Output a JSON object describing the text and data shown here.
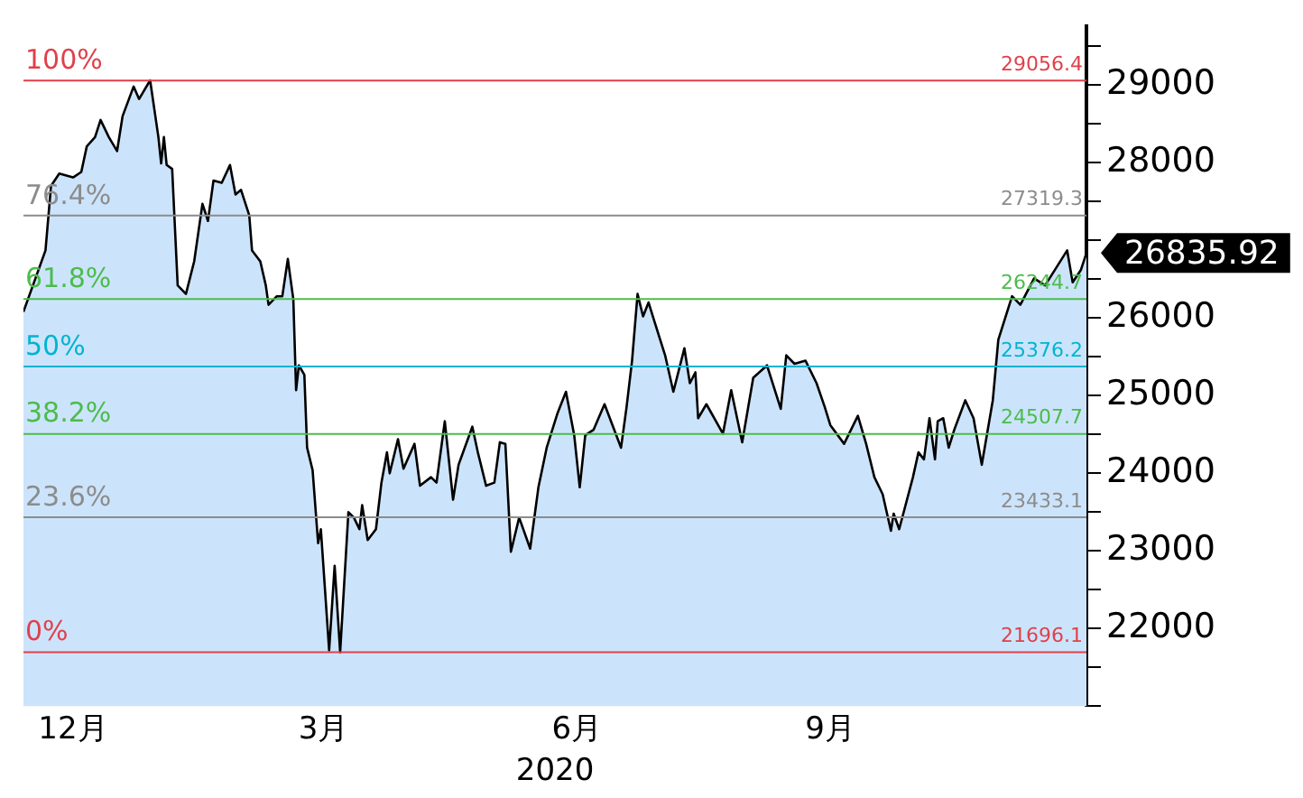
{
  "chart_data": {
    "type": "area",
    "xlabel": "2020",
    "legend": false,
    "grid": false,
    "marker": "none",
    "x": [
      "2019-11-13",
      "2019-11-21",
      "2019-11-23",
      "2019-11-26",
      "2019-12-01",
      "2019-12-04",
      "2019-12-06",
      "2019-12-09",
      "2019-12-11",
      "2019-12-14",
      "2019-12-17",
      "2019-12-19",
      "2019-12-23",
      "2019-12-25",
      "2019-12-29",
      "2020-01-01",
      "2020-01-02",
      "2020-01-03",
      "2020-01-04",
      "2020-01-06",
      "2020-01-08",
      "2020-01-11",
      "2020-01-14",
      "2020-01-17",
      "2020-01-19",
      "2020-01-21",
      "2020-01-24",
      "2020-01-27",
      "2020-01-29",
      "2020-01-31",
      "2020-02-03",
      "2020-02-04",
      "2020-02-07",
      "2020-02-09",
      "2020-02-10",
      "2020-02-13",
      "2020-02-15",
      "2020-02-17",
      "2020-02-19",
      "2020-02-20",
      "2020-02-21",
      "2020-02-23",
      "2020-02-24",
      "2020-02-26",
      "2020-02-28",
      "2020-02-29",
      "2020-03-03",
      "2020-03-05",
      "2020-03-07",
      "2020-03-10",
      "2020-03-12",
      "2020-03-14",
      "2020-03-15",
      "2020-03-17",
      "2020-03-20",
      "2020-03-22",
      "2020-03-24",
      "2020-03-25",
      "2020-03-28",
      "2020-03-30",
      "2020-04-03",
      "2020-04-05",
      "2020-04-09",
      "2020-04-11",
      "2020-04-14",
      "2020-04-17",
      "2020-04-19",
      "2020-04-24",
      "2020-04-26",
      "2020-04-29",
      "2020-05-02",
      "2020-05-04",
      "2020-05-06",
      "2020-05-08",
      "2020-05-11",
      "2020-05-15",
      "2020-05-18",
      "2020-05-21",
      "2020-05-25",
      "2020-05-28",
      "2020-05-31",
      "2020-06-02",
      "2020-06-04",
      "2020-06-07",
      "2020-06-11",
      "2020-06-17",
      "2020-06-19",
      "2020-06-21",
      "2020-06-23",
      "2020-06-25",
      "2020-06-27",
      "2020-06-29",
      "2020-07-03",
      "2020-07-06",
      "2020-07-10",
      "2020-07-12",
      "2020-07-14",
      "2020-07-15",
      "2020-07-18",
      "2020-07-24",
      "2020-07-27",
      "2020-07-31",
      "2020-08-04",
      "2020-08-09",
      "2020-08-14",
      "2020-08-16",
      "2020-08-19",
      "2020-08-23",
      "2020-08-27",
      "2020-08-30",
      "2020-09-01",
      "2020-09-06",
      "2020-09-11",
      "2020-09-14",
      "2020-09-17",
      "2020-09-20",
      "2020-09-23",
      "2020-09-24",
      "2020-09-26",
      "2020-10-01",
      "2020-10-03",
      "2020-10-05",
      "2020-10-07",
      "2020-10-09",
      "2020-10-10",
      "2020-10-12",
      "2020-10-14",
      "2020-10-16",
      "2020-10-20",
      "2020-10-23",
      "2020-10-26",
      "2020-10-30",
      "2020-11-01",
      "2020-11-06",
      "2020-11-09",
      "2020-11-14",
      "2020-11-18",
      "2020-11-26",
      "2020-11-28",
      "2020-12-01",
      "2020-12-03"
    ],
    "series": [
      {
        "color": "#cce4fb",
        "values": [
          26080,
          26870,
          27700,
          27860,
          27810,
          27880,
          28210,
          28330,
          28550,
          28330,
          28150,
          28600,
          28980,
          28820,
          29060,
          28330,
          27990,
          28330,
          27970,
          27920,
          26420,
          26310,
          26730,
          27470,
          27250,
          27770,
          27740,
          27970,
          27590,
          27650,
          27320,
          26870,
          26730,
          26420,
          26170,
          26280,
          26280,
          26760,
          26240,
          25070,
          25390,
          25270,
          24330,
          24040,
          23100,
          23280,
          21720,
          22810,
          21696,
          23500,
          23430,
          23280,
          23590,
          23140,
          23280,
          23880,
          24270,
          24000,
          24440,
          24060,
          24380,
          23840,
          23950,
          23880,
          24670,
          23660,
          24110,
          24600,
          24270,
          23840,
          23880,
          24400,
          24380,
          22990,
          23430,
          23030,
          23820,
          24330,
          24780,
          25050,
          24490,
          23820,
          24490,
          24560,
          24890,
          24330,
          24850,
          25450,
          26310,
          26020,
          26200,
          25970,
          25520,
          25050,
          25610,
          25160,
          25300,
          24710,
          24890,
          24510,
          25070,
          24400,
          25230,
          25390,
          24830,
          25520,
          25410,
          25450,
          25160,
          24850,
          24620,
          24380,
          24740,
          24380,
          23950,
          23730,
          23260,
          23480,
          23280,
          23950,
          24270,
          24180,
          24710,
          24180,
          24670,
          24710,
          24330,
          24560,
          24940,
          24710,
          24110,
          24940,
          25720,
          26280,
          26170,
          26510,
          26420,
          26870,
          26460,
          26620,
          26835.92
        ]
      }
    ],
    "xlim": [
      "2019-11-13",
      "2020-12-03"
    ],
    "xticks": [
      {
        "value": "2019-12-01",
        "label": "12月"
      },
      {
        "value": "2020-03-01",
        "label": "3月"
      },
      {
        "value": "2020-06-01",
        "label": "6月"
      },
      {
        "value": "2020-09-01",
        "label": "9月"
      }
    ],
    "ylim": [
      21000,
      29760
    ],
    "yticks": [
      {
        "value": 21000,
        "label": null
      },
      {
        "value": 21500,
        "label": null
      },
      22000,
      {
        "value": 22500,
        "label": null
      },
      23000,
      {
        "value": 23500,
        "label": null
      },
      24000,
      {
        "value": 24500,
        "label": null
      },
      25000,
      {
        "value": 25500,
        "label": null
      },
      26000,
      {
        "value": 26500,
        "label": null
      },
      {
        "value": 27000,
        "label": null
      },
      {
        "value": 27500,
        "label": null
      },
      28000,
      {
        "value": 28500,
        "label": null
      },
      29000,
      {
        "value": 29500,
        "label": null
      }
    ],
    "ref_lines": [
      {
        "axis": "y",
        "value": 29056.4,
        "label": "29056.4",
        "color": "#e0404a"
      },
      {
        "axis": "y",
        "value": 27319.3,
        "label": "27319.3",
        "color": "#8c8c8c"
      },
      {
        "axis": "y",
        "value": 26244.7,
        "label": "26244.7",
        "color": "#4cbc4c"
      },
      {
        "axis": "y",
        "value": 25376.2,
        "label": "25376.2",
        "color": "#00b4d0"
      },
      {
        "axis": "y",
        "value": 24507.7,
        "label": "24507.7",
        "color": "#4cbc4c"
      },
      {
        "axis": "y",
        "value": 23433.1,
        "label": "23433.1",
        "color": "#8c8c8c"
      },
      {
        "axis": "y",
        "value": 21696.1,
        "label": "21696.1",
        "color": "#e0404a"
      }
    ],
    "annotations": [
      {
        "text": "100%",
        "y": 29056.4
      },
      {
        "text": "76.4%",
        "y": 27319.3
      },
      {
        "text": "61.8%",
        "y": 26244.7
      },
      {
        "text": "50%",
        "y": 25376.2
      },
      {
        "text": "38.2%",
        "y": 24507.7
      },
      {
        "text": "23.6%",
        "y": 23433.1
      },
      {
        "text": "0%",
        "y": 21696.1
      },
      {
        "text": "26835.92",
        "x": "2020-12-03",
        "y": 26835.92
      }
    ]
  }
}
